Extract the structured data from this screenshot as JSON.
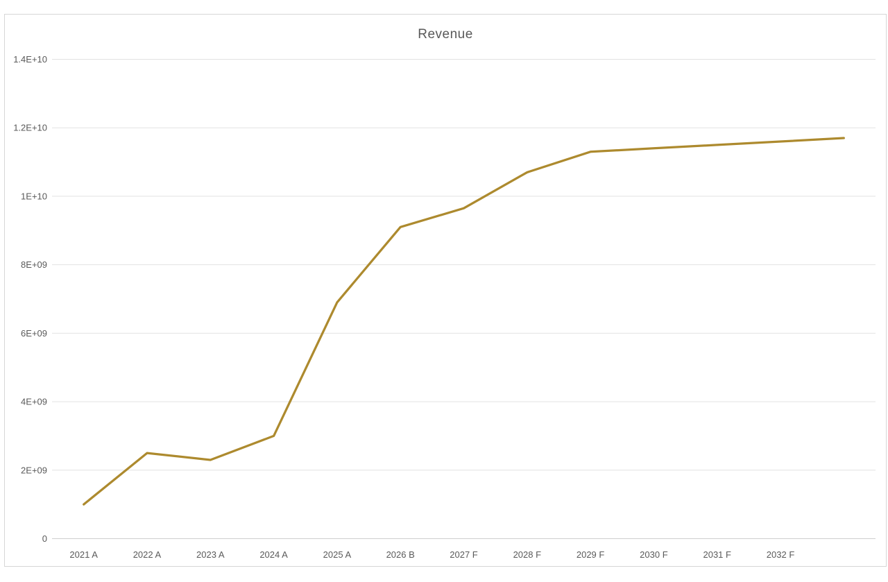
{
  "window": {
    "background": "#FFFFFF",
    "frame_border_color": "#D6D6D6"
  },
  "chart_data": {
    "type": "line",
    "title": "Revenue",
    "categories": [
      "2021 A",
      "2022 A",
      "2023 A",
      "2024 A",
      "2025 A",
      "2026 B",
      "2027 F",
      "2028 F",
      "2029 F",
      "2030 F",
      "2031 F",
      "2032 F",
      ""
    ],
    "series": [
      {
        "name": "Revenue",
        "color": "#AD8A2E",
        "values": [
          1000000000,
          2500000000,
          2300000000,
          3000000000,
          6900000000,
          9100000000,
          9650000000,
          10700000000,
          11300000000,
          11400000000,
          11500000000,
          11600000000,
          11700000000
        ]
      }
    ],
    "xlabel": "",
    "ylabel": "",
    "ylim": [
      0,
      14000000000
    ],
    "y_ticks": [
      {
        "value": 0,
        "label": "0"
      },
      {
        "value": 2000000000,
        "label": "2E+09"
      },
      {
        "value": 4000000000,
        "label": "4E+09"
      },
      {
        "value": 6000000000,
        "label": "6E+09"
      },
      {
        "value": 8000000000,
        "label": "8E+09"
      },
      {
        "value": 10000000000,
        "label": "1E+10"
      },
      {
        "value": 12000000000,
        "label": "1.2E+10"
      },
      {
        "value": 14000000000,
        "label": "1.4E+10"
      }
    ],
    "grid": true,
    "legend": false,
    "colors": {
      "grid_line": "#E2E2E2",
      "axis_line": "#CFCFCF",
      "tick_label": "#595959",
      "title": "#595959"
    }
  }
}
